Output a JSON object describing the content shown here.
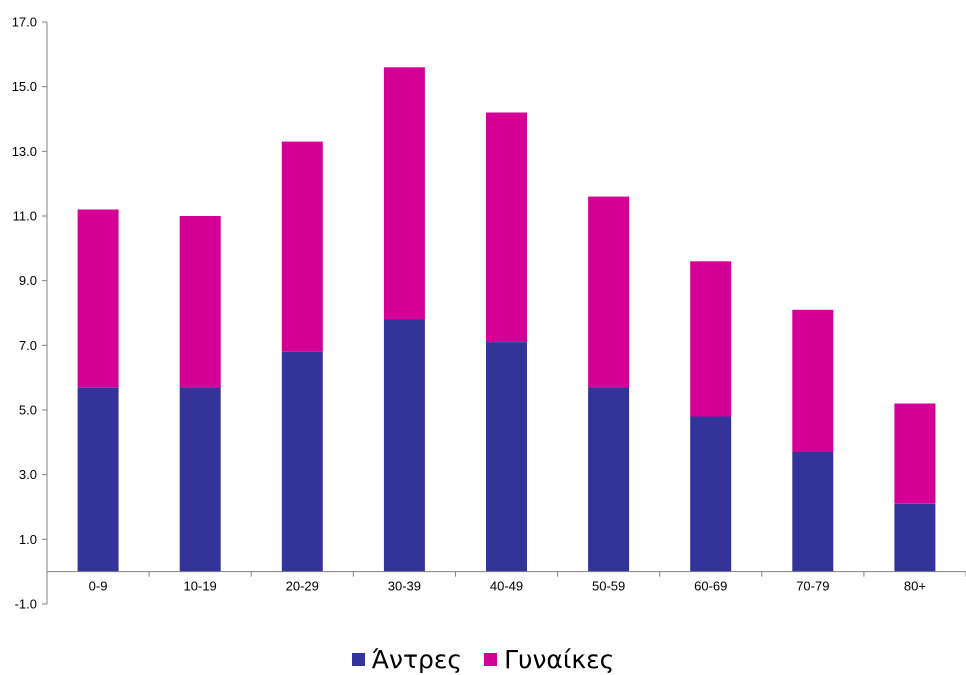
{
  "chart_data": {
    "type": "bar",
    "stacked": true,
    "title": "",
    "xlabel": "",
    "ylabel": "",
    "categories": [
      "0-9",
      "10-19",
      "20-29",
      "30-39",
      "40-49",
      "50-59",
      "60-69",
      "70-79",
      "80+"
    ],
    "series": [
      {
        "name": "Άντρες",
        "color": "#333399",
        "values": [
          5.7,
          5.7,
          6.8,
          7.8,
          7.1,
          5.7,
          4.8,
          3.7,
          2.1
        ]
      },
      {
        "name": "Γυναίκες",
        "color": "#d40096",
        "values": [
          5.5,
          5.3,
          6.5,
          7.8,
          7.1,
          5.9,
          4.8,
          4.4,
          3.1
        ]
      }
    ],
    "ylim": [
      -1.0,
      17.0
    ],
    "yticks": [
      "-1.0",
      "1.0",
      "3.0",
      "5.0",
      "7.0",
      "9.0",
      "11.0",
      "13.0",
      "15.0",
      "17.0"
    ],
    "grid": false,
    "legend_position": "bottom"
  }
}
